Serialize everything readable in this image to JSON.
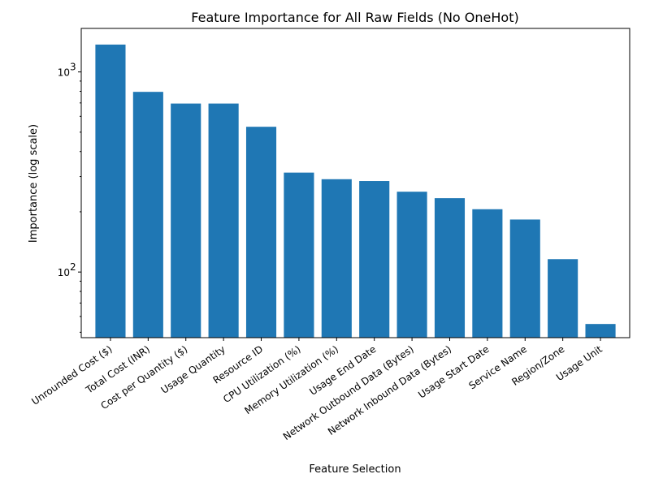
{
  "chart_data": {
    "type": "bar",
    "title": "Feature Importance for All Raw Fields (No OneHot)",
    "xlabel": "Feature Selection",
    "ylabel": "Importance (log scale)",
    "yscale": "log",
    "ylim": [
      47,
      1650
    ],
    "y_ticks": [
      {
        "value": 100,
        "label": "10",
        "exp": "2"
      },
      {
        "value": 1000,
        "label": "10",
        "exp": "3"
      }
    ],
    "y_minor_ticks": [
      50,
      60,
      70,
      80,
      90,
      200,
      300,
      400,
      500,
      600,
      700,
      800,
      900
    ],
    "bar_color": "#1f77b4",
    "grid": false,
    "categories": [
      "Unrounded Cost ($)",
      "Total Cost (INR)",
      "Cost per Quantity ($)",
      "Usage Quantity",
      "Resource ID",
      "CPU Utilization (%)",
      "Memory Utilization (%)",
      "Usage End Date",
      "Network Outbound Data (Bytes)",
      "Network Inbound Data (Bytes)",
      "Usage Start Date",
      "Service Name",
      "Region/Zone",
      "Usage Unit"
    ],
    "values": [
      1370,
      795,
      695,
      695,
      532,
      314,
      291,
      285,
      252,
      234,
      206,
      183,
      116,
      55
    ]
  }
}
